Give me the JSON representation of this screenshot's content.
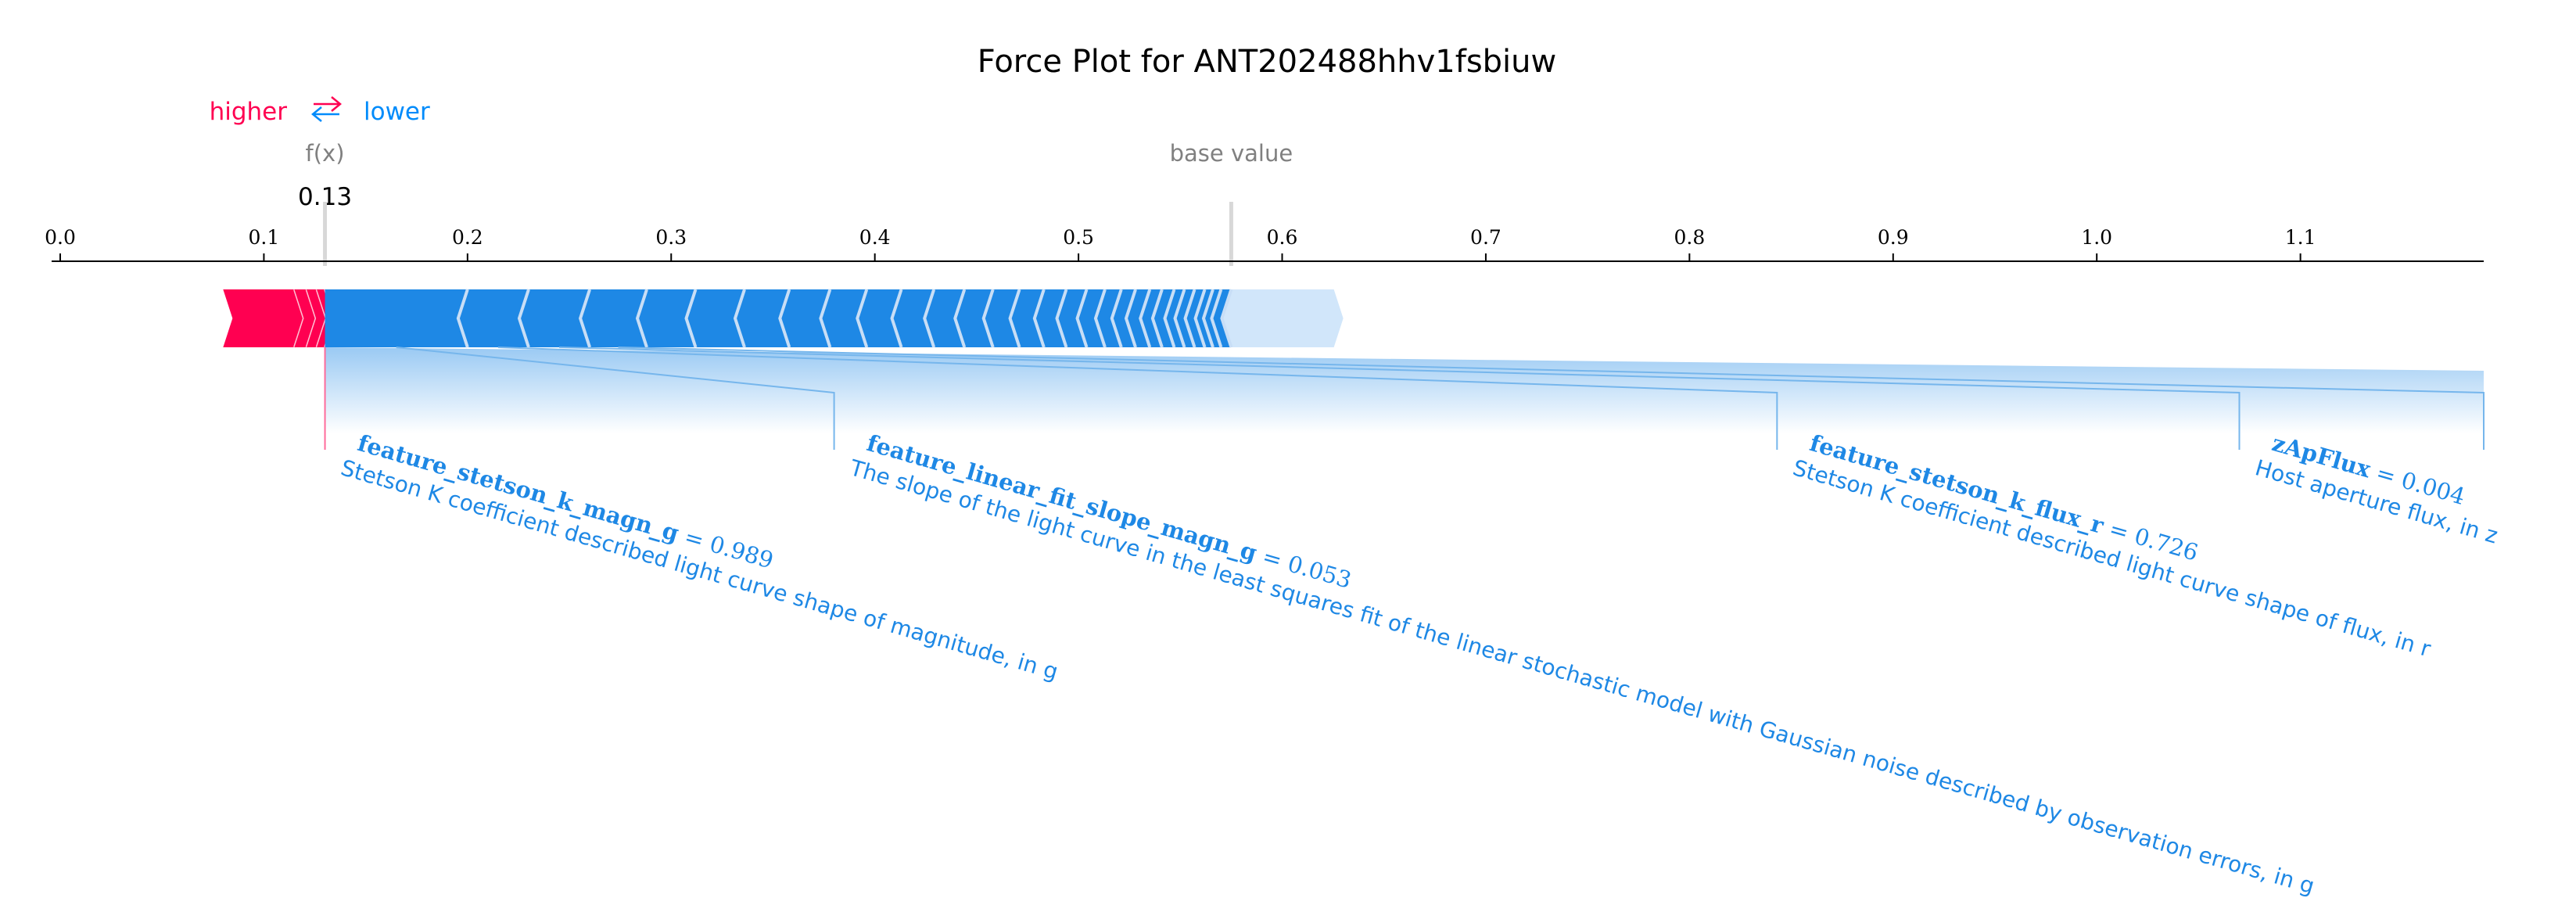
{
  "chart_data": {
    "type": "force",
    "title": "Force Plot for ANT202488hhv1fsbiuw",
    "legend": {
      "higher": "higher",
      "lower": "lower",
      "arrow_symbol": "⇄"
    },
    "fx_label": "f(x)",
    "fx_value": 0.13,
    "fx_value_text": "0.13",
    "base_value": 0.575,
    "base_value_label": "base value",
    "xlim": [
      0.0,
      1.19
    ],
    "ticks": [
      "0.0",
      "0.1",
      "0.2",
      "0.3",
      "0.4",
      "0.5",
      "0.6",
      "0.7",
      "0.8",
      "0.9",
      "1.0",
      "1.1"
    ],
    "tick_values": [
      0.0,
      0.1,
      0.2,
      0.3,
      0.4,
      0.5,
      0.6,
      0.7,
      0.8,
      0.9,
      1.0,
      1.1
    ],
    "bar_extent": [
      0.08,
      0.63
    ],
    "positive_segments": [
      {
        "start": 0.08,
        "end": 0.115
      },
      {
        "start": 0.115,
        "end": 0.121
      },
      {
        "start": 0.121,
        "end": 0.126
      },
      {
        "start": 0.126,
        "end": 0.13
      }
    ],
    "negative_segments": [
      {
        "start": 0.13,
        "end": 0.2
      },
      {
        "start": 0.2,
        "end": 0.23
      },
      {
        "start": 0.23,
        "end": 0.26
      },
      {
        "start": 0.26,
        "end": 0.288
      },
      {
        "start": 0.288,
        "end": 0.312
      },
      {
        "start": 0.312,
        "end": 0.336
      },
      {
        "start": 0.336,
        "end": 0.358
      },
      {
        "start": 0.358,
        "end": 0.378
      },
      {
        "start": 0.378,
        "end": 0.396
      },
      {
        "start": 0.396,
        "end": 0.413
      },
      {
        "start": 0.413,
        "end": 0.429
      },
      {
        "start": 0.429,
        "end": 0.444
      },
      {
        "start": 0.444,
        "end": 0.458
      },
      {
        "start": 0.458,
        "end": 0.471
      },
      {
        "start": 0.471,
        "end": 0.483
      },
      {
        "start": 0.483,
        "end": 0.494
      },
      {
        "start": 0.494,
        "end": 0.504
      },
      {
        "start": 0.504,
        "end": 0.513
      },
      {
        "start": 0.513,
        "end": 0.521
      },
      {
        "start": 0.521,
        "end": 0.528
      },
      {
        "start": 0.528,
        "end": 0.535
      },
      {
        "start": 0.535,
        "end": 0.541
      },
      {
        "start": 0.541,
        "end": 0.547
      },
      {
        "start": 0.547,
        "end": 0.552
      },
      {
        "start": 0.552,
        "end": 0.557
      },
      {
        "start": 0.557,
        "end": 0.562
      },
      {
        "start": 0.562,
        "end": 0.566
      },
      {
        "start": 0.566,
        "end": 0.57
      },
      {
        "start": 0.57,
        "end": 0.575
      }
    ],
    "features": [
      {
        "name": "feature_stetson_k_magn_g",
        "value_text": " = 0.989",
        "description": "Stetson K coefficient described light curve shape of magnitude, in g",
        "effect": "higher",
        "seg_start": 0.126,
        "seg_end": 0.13,
        "label_x": 0.13
      },
      {
        "name": "feature_linear_fit_slope_magn_g",
        "value_text": " = 0.053",
        "description": "The slope of the light curve in the least squares fit of the linear stochastic model with Gaussian noise described by observation errors, in g",
        "effect": "lower",
        "seg_start": 0.13,
        "seg_end": 0.2,
        "label_x": 0.38
      },
      {
        "name": "feature_stetson_k_flux_r",
        "value_text": " = 0.726",
        "description": "Stetson K coefficient described light curve shape of flux, in r",
        "effect": "lower",
        "seg_start": 0.2,
        "seg_end": 0.23,
        "label_x": 0.843
      },
      {
        "name": "zApFlux",
        "value_text": " = 0.004",
        "description": "Host aperture flux, in z",
        "effect": "lower",
        "seg_start": 0.23,
        "seg_end": 0.26,
        "label_x": 1.07
      },
      {
        "name": "",
        "value_text": "",
        "description": "",
        "effect": "lower",
        "seg_start": 0.26,
        "seg_end": 0.288,
        "label_x": 1.19
      }
    ],
    "colors": {
      "positive": "#ff0051",
      "negative": "#008bfb",
      "positive_light": "#ffc3d5",
      "negative_light": "#d1e6fa",
      "bar_negative": "#1e88e5",
      "connector": "#76b6ec",
      "grey": "#808080"
    }
  }
}
